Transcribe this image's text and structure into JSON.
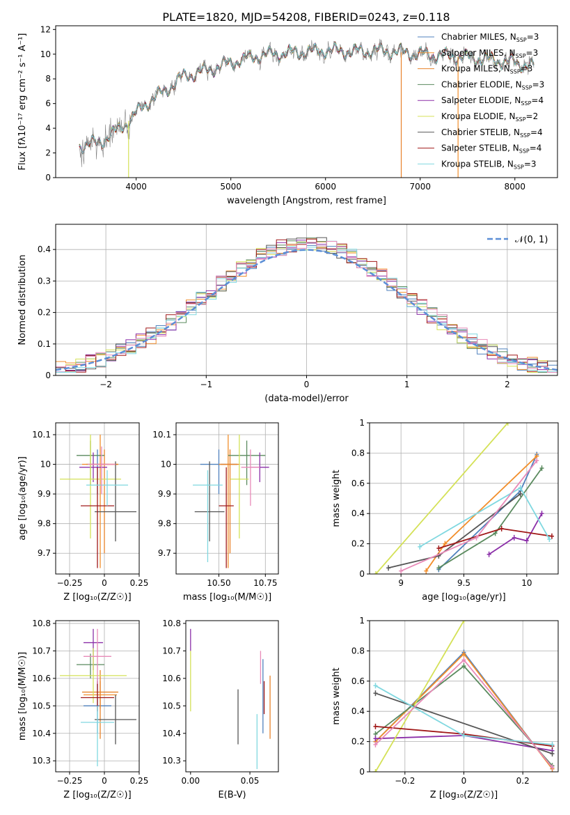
{
  "figure_title": "PLATE=1820, MJD=54208, FIBERID=0243, z=0.118",
  "colors": {
    "Chabrier MILES": "#4f81bd",
    "Salpeter MILES": "#f28e2b",
    "Kroupa MILES": "#e8822a",
    "Chabrier ELODIE": "#5a8a5e",
    "Salpeter ELODIE": "#8b2fa8",
    "Kroupa ELODIE": "#d4e157",
    "Chabrier STELIB": "#555555",
    "Salpeter STELIB": "#a01818",
    "Kroupa STELIB": "#80d8e0",
    "pink": "#e88ab8",
    "normal_curve": "#5b8ed6"
  },
  "chart_data": [
    {
      "type": "line",
      "id": "spectrum",
      "xlabel": "wavelength [Angstrom, rest frame]",
      "ylabel": "Flux [fλ10⁻¹⁷ erg cm⁻² s⁻¹ A⁻¹]",
      "xlim": [
        3150,
        8450
      ],
      "ylim": [
        0,
        12.3
      ],
      "xticks": [
        4000,
        5000,
        6000,
        7000,
        8000
      ],
      "yticks": [
        0,
        2,
        4,
        6,
        8,
        10,
        12
      ],
      "legend_position": "top-right",
      "continuum": {
        "x": [
          3400,
          3600,
          3800,
          3950,
          4100,
          4300,
          4500,
          4800,
          5000,
          5300,
          5600,
          6000,
          6300,
          6600,
          7000,
          7400,
          7700,
          8000,
          8200
        ],
        "y": [
          2.6,
          2.8,
          3.8,
          4.8,
          6.0,
          7.0,
          8.2,
          8.8,
          9.3,
          9.9,
          10.1,
          10.3,
          10.2,
          10.3,
          10.0,
          9.8,
          9.6,
          9.3,
          9.0
        ]
      },
      "series": [
        {
          "name": "Chabrier MILES",
          "nssp": "3"
        },
        {
          "name": "Salpeter MILES",
          "nssp": "3"
        },
        {
          "name": "Kroupa MILES",
          "nssp": "3"
        },
        {
          "name": "Chabrier ELODIE",
          "nssp": "3"
        },
        {
          "name": "Salpeter ELODIE",
          "nssp": "4"
        },
        {
          "name": "Kroupa ELODIE",
          "nssp": "2"
        },
        {
          "name": "Chabrier STELIB",
          "nssp": "4"
        },
        {
          "name": "Salpeter STELIB",
          "nssp": "4"
        },
        {
          "name": "Kroupa STELIB",
          "nssp": "3"
        }
      ]
    },
    {
      "type": "line",
      "id": "residual_histogram",
      "xlabel": "(data-model)/error",
      "ylabel": "Normed distribution",
      "xlim": [
        -2.5,
        2.5
      ],
      "ylim": [
        0,
        0.48
      ],
      "xticks": [
        -2,
        -1,
        0,
        1,
        2
      ],
      "yticks": [
        0.0,
        0.1,
        0.2,
        0.3,
        0.4
      ],
      "legend": [
        {
          "label": "𝒩(0, 1)",
          "style": "dashed"
        }
      ],
      "legend_position": "top-right",
      "grid": true,
      "bin_width": 0.1,
      "bin_start": -2.5
    },
    {
      "type": "scatter",
      "id": "age_vs_Z",
      "xlabel": "Z [log₁₀(Z/Z☉)]",
      "ylabel": "age  [log₁₀(age/yr)]",
      "xlim": [
        -0.35,
        0.25
      ],
      "ylim": [
        9.63,
        10.14
      ],
      "xticks": [
        -0.25,
        0.0,
        0.25
      ],
      "yticks": [
        9.7,
        9.8,
        9.9,
        10.0,
        10.1
      ],
      "grid": true,
      "points": [
        {
          "series": "Chabrier MILES",
          "x": -0.05,
          "y": 10.0,
          "xerr": 0.08,
          "yerr": [
            0.1,
            0.05
          ]
        },
        {
          "series": "Salpeter MILES",
          "x": -0.03,
          "y": 10.0,
          "xerr": 0.13,
          "yerr": [
            0.35,
            0.1
          ]
        },
        {
          "series": "Kroupa MILES",
          "x": 0.0,
          "y": 10.0,
          "xerr": 0.1,
          "yerr": [
            0.3,
            0.05
          ]
        },
        {
          "series": "Chabrier ELODIE",
          "x": -0.1,
          "y": 10.03,
          "xerr": 0.1,
          "yerr": [
            0.1,
            0.05
          ]
        },
        {
          "series": "Salpeter ELODIE",
          "x": -0.08,
          "y": 9.99,
          "xerr": 0.1,
          "yerr": [
            0.05,
            0.05
          ]
        },
        {
          "series": "Kroupa ELODIE",
          "x": -0.1,
          "y": 9.95,
          "xerr": 0.22,
          "yerr": [
            0.2,
            0.15
          ]
        },
        {
          "series": "Chabrier STELIB",
          "x": 0.08,
          "y": 9.84,
          "xerr": 0.15,
          "yerr": [
            0.1,
            0.17
          ]
        },
        {
          "series": "Salpeter STELIB",
          "x": -0.05,
          "y": 9.86,
          "xerr": 0.12,
          "yerr": [
            0.21,
            0.13
          ]
        },
        {
          "series": "Kroupa STELIB",
          "x": 0.02,
          "y": 9.93,
          "xerr": 0.15,
          "yerr": [
            0.07,
            0.05
          ]
        },
        {
          "series": "pink",
          "x": -0.02,
          "y": 10.0,
          "xerr": 0.1,
          "yerr": [
            0.1,
            0.06
          ]
        }
      ]
    },
    {
      "type": "scatter",
      "id": "age_vs_mass",
      "xlabel": "mass [log₁₀(M/M☉)]",
      "ylabel": "",
      "xlim": [
        10.27,
        10.82
      ],
      "ylim": [
        9.63,
        10.14
      ],
      "xticks": [
        10.5,
        10.75
      ],
      "xtick_labels": [
        "10.50",
        "10.75"
      ],
      "yticks": [
        9.7,
        9.8,
        9.9,
        10.0,
        10.1
      ],
      "grid": true,
      "points": [
        {
          "series": "Chabrier MILES",
          "x": 10.5,
          "y": 10.0,
          "xerr": 0.1,
          "yerr": [
            0.1,
            0.05
          ]
        },
        {
          "series": "Salpeter MILES",
          "x": 10.55,
          "y": 10.0,
          "xerr": 0.05,
          "yerr": [
            0.35,
            0.1
          ]
        },
        {
          "series": "Kroupa MILES",
          "x": 10.56,
          "y": 10.0,
          "xerr": 0.05,
          "yerr": [
            0.3,
            0.05
          ]
        },
        {
          "series": "Chabrier ELODIE",
          "x": 10.65,
          "y": 10.03,
          "xerr": 0.1,
          "yerr": [
            0.1,
            0.05
          ]
        },
        {
          "series": "Salpeter ELODIE",
          "x": 10.72,
          "y": 9.99,
          "xerr": 0.05,
          "yerr": [
            0.05,
            0.05
          ]
        },
        {
          "series": "Kroupa ELODIE",
          "x": 10.61,
          "y": 9.95,
          "xerr": 0.05,
          "yerr": [
            0.2,
            0.15
          ]
        },
        {
          "series": "Chabrier STELIB",
          "x": 10.45,
          "y": 9.84,
          "xerr": 0.08,
          "yerr": [
            0.1,
            0.17
          ]
        },
        {
          "series": "Salpeter STELIB",
          "x": 10.54,
          "y": 9.86,
          "xerr": 0.04,
          "yerr": [
            0.21,
            0.13
          ]
        },
        {
          "series": "Kroupa STELIB",
          "x": 10.44,
          "y": 9.93,
          "xerr": 0.08,
          "yerr": [
            0.26,
            0.05
          ]
        },
        {
          "series": "pink",
          "x": 10.67,
          "y": 9.99,
          "xerr": 0.05,
          "yerr": [
            0.13,
            0.06
          ]
        }
      ]
    },
    {
      "type": "line",
      "id": "mass_weight_vs_age",
      "xlabel": "age  [log₁₀(age/yr)]",
      "ylabel": "mass weight",
      "xlim": [
        8.75,
        10.25
      ],
      "ylim": [
        0,
        1
      ],
      "xticks": [
        9.0,
        9.5,
        10.0
      ],
      "yticks": [
        0.0,
        0.2,
        0.4,
        0.6,
        0.8,
        1.0
      ],
      "grid": true,
      "series": [
        {
          "series": "Chabrier MILES",
          "x": [
            9.3,
            9.95,
            10.08
          ],
          "y": [
            0.03,
            0.55,
            0.79
          ]
        },
        {
          "series": "Salpeter MILES",
          "x": [
            9.2,
            9.35,
            10.08
          ],
          "y": [
            0.02,
            0.2,
            0.78
          ]
        },
        {
          "series": "Chabrier ELODIE",
          "x": [
            9.3,
            9.75,
            10.12
          ],
          "y": [
            0.04,
            0.27,
            0.7
          ]
        },
        {
          "series": "Salpeter ELODIE",
          "x": [
            9.7,
            9.9,
            10.0,
            10.12
          ],
          "y": [
            0.13,
            0.24,
            0.22,
            0.4
          ]
        },
        {
          "series": "Kroupa ELODIE",
          "x": [
            8.8,
            9.85
          ],
          "y": [
            0.0,
            1.0
          ]
        },
        {
          "series": "Chabrier STELIB",
          "x": [
            8.9,
            9.3,
            9.95
          ],
          "y": [
            0.04,
            0.12,
            0.53
          ]
        },
        {
          "series": "Salpeter STELIB",
          "x": [
            9.3,
            9.8,
            10.2
          ],
          "y": [
            0.17,
            0.3,
            0.25
          ]
        },
        {
          "series": "Kroupa STELIB",
          "x": [
            9.15,
            9.95,
            10.18
          ],
          "y": [
            0.18,
            0.57,
            0.23
          ]
        },
        {
          "series": "pink",
          "x": [
            9.0,
            9.6,
            10.08
          ],
          "y": [
            0.02,
            0.24,
            0.75
          ]
        }
      ]
    },
    {
      "type": "scatter",
      "id": "mass_vs_Z",
      "xlabel": "Z [log₁₀(Z/Z☉)]",
      "ylabel": "mass [log₁₀(M/M☉)]",
      "xlim": [
        -0.35,
        0.25
      ],
      "ylim": [
        10.26,
        10.81
      ],
      "xticks": [
        -0.25,
        0.0,
        0.25
      ],
      "yticks": [
        10.3,
        10.4,
        10.5,
        10.6,
        10.7,
        10.8
      ],
      "grid": true,
      "points": [
        {
          "series": "Chabrier MILES",
          "x": -0.05,
          "y": 10.5,
          "xerr": 0.1,
          "yerr": [
            0.1,
            0.1
          ]
        },
        {
          "series": "Salpeter MILES",
          "x": -0.03,
          "y": 10.54,
          "xerr": 0.12,
          "yerr": [
            0.05,
            0.05
          ]
        },
        {
          "series": "Kroupa MILES",
          "x": -0.03,
          "y": 10.55,
          "xerr": 0.13,
          "yerr": [
            0.17,
            0.08
          ]
        },
        {
          "series": "Chabrier ELODIE",
          "x": -0.1,
          "y": 10.65,
          "xerr": 0.1,
          "yerr": [
            0.05,
            0.04
          ]
        },
        {
          "series": "Salpeter ELODIE",
          "x": -0.08,
          "y": 10.73,
          "xerr": 0.07,
          "yerr": [
            0.1,
            0.05
          ]
        },
        {
          "series": "Kroupa ELODIE",
          "x": -0.08,
          "y": 10.61,
          "xerr": 0.24,
          "yerr": [
            0.1,
            0.1
          ]
        },
        {
          "series": "Chabrier STELIB",
          "x": 0.08,
          "y": 10.45,
          "xerr": 0.15,
          "yerr": [
            0.09,
            0.09
          ]
        },
        {
          "series": "Salpeter STELIB",
          "x": -0.05,
          "y": 10.53,
          "xerr": 0.12,
          "yerr": [
            0.05,
            0.06
          ]
        },
        {
          "series": "Kroupa STELIB",
          "x": -0.05,
          "y": 10.44,
          "xerr": 0.12,
          "yerr": [
            0.16,
            0.06
          ]
        },
        {
          "series": "pink",
          "x": -0.05,
          "y": 10.68,
          "xerr": 0.1,
          "yerr": [
            0.1,
            0.1
          ]
        }
      ]
    },
    {
      "type": "scatter",
      "id": "mass_vs_ebv",
      "xlabel": "E(B-V)",
      "ylabel": "",
      "xlim": [
        -0.004,
        0.074
      ],
      "ylim": [
        10.26,
        10.81
      ],
      "xticks": [
        0.0,
        0.05
      ],
      "xtick_labels": [
        "0.00",
        "0.05"
      ],
      "yticks": [
        10.3,
        10.4,
        10.5,
        10.6,
        10.7,
        10.8
      ],
      "grid": false,
      "points": [
        {
          "series": "Salpeter ELODIE",
          "x": 0.0,
          "y": 10.75,
          "yerr": [
            0.05,
            0.03
          ]
        },
        {
          "series": "Kroupa ELODIE",
          "x": 0.0,
          "y": 10.6,
          "yerr": [
            0.12,
            0.1
          ]
        },
        {
          "series": "Chabrier STELIB",
          "x": 0.04,
          "y": 10.46,
          "yerr": [
            0.1,
            0.1
          ]
        },
        {
          "series": "Kroupa STELIB",
          "x": 0.056,
          "y": 10.37,
          "yerr": [
            0.1,
            0.1
          ]
        },
        {
          "series": "pink",
          "x": 0.059,
          "y": 10.62,
          "yerr": [
            0.04,
            0.08
          ]
        },
        {
          "series": "Chabrier MILES",
          "x": 0.061,
          "y": 10.5,
          "yerr": [
            0.1,
            0.17
          ]
        },
        {
          "series": "Salpeter STELIB",
          "x": 0.062,
          "y": 10.53,
          "yerr": [
            0.06,
            0.06
          ]
        },
        {
          "series": "Kroupa MILES",
          "x": 0.067,
          "y": 10.5,
          "yerr": [
            0.12,
            0.11
          ]
        }
      ]
    },
    {
      "type": "line",
      "id": "mass_weight_vs_Z",
      "xlabel": "Z [log₁₀(Z/Z☉)]",
      "ylabel": "mass weight",
      "xlim": [
        -0.32,
        0.32
      ],
      "ylim": [
        0,
        1
      ],
      "xticks": [
        -0.2,
        0.0,
        0.2
      ],
      "yticks": [
        0.0,
        0.2,
        0.4,
        0.6,
        0.8,
        1.0
      ],
      "grid": true,
      "series": [
        {
          "series": "Chabrier MILES",
          "x": [
            -0.3,
            0.0,
            0.3
          ],
          "y": [
            0.2,
            0.79,
            0.02
          ]
        },
        {
          "series": "Salpeter MILES",
          "x": [
            -0.3,
            0.0,
            0.3
          ],
          "y": [
            0.2,
            0.78,
            0.02
          ]
        },
        {
          "series": "Chabrier ELODIE",
          "x": [
            -0.3,
            0.0,
            0.3
          ],
          "y": [
            0.25,
            0.7,
            0.04
          ]
        },
        {
          "series": "Salpeter ELODIE",
          "x": [
            -0.3,
            0.0,
            0.3
          ],
          "y": [
            0.22,
            0.24,
            0.14
          ]
        },
        {
          "series": "Kroupa ELODIE",
          "x": [
            -0.3,
            0.0
          ],
          "y": [
            0.0,
            1.0
          ]
        },
        {
          "series": "Chabrier STELIB",
          "x": [
            -0.3,
            0.3
          ],
          "y": [
            0.52,
            0.12
          ]
        },
        {
          "series": "Salpeter STELIB",
          "x": [
            -0.3,
            0.0,
            0.3
          ],
          "y": [
            0.3,
            0.25,
            0.17
          ]
        },
        {
          "series": "Kroupa STELIB",
          "x": [
            -0.3,
            0.0,
            0.3
          ],
          "y": [
            0.57,
            0.24,
            0.18
          ]
        },
        {
          "series": "pink",
          "x": [
            -0.3,
            0.0,
            0.3
          ],
          "y": [
            0.18,
            0.74,
            0.03
          ]
        }
      ]
    }
  ]
}
